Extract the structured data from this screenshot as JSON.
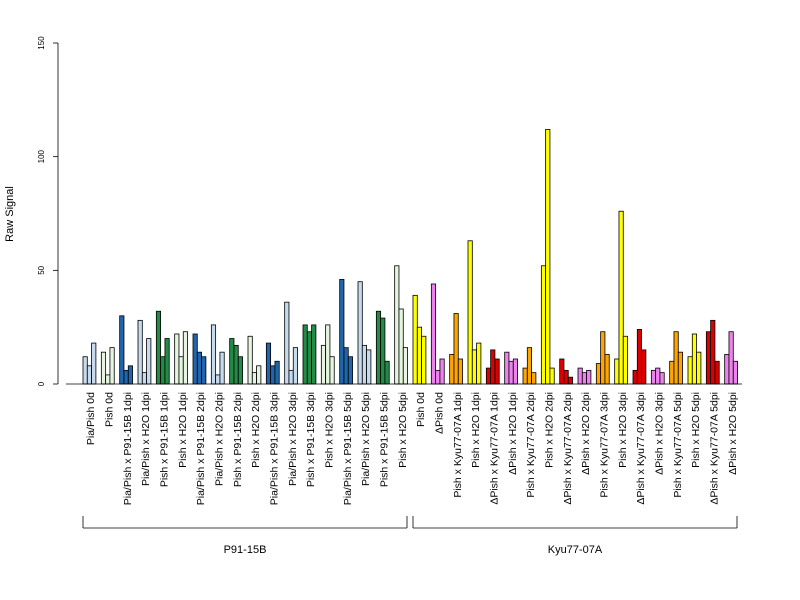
{
  "chart_data": {
    "type": "bar",
    "ylabel": "Raw Signal",
    "ylim": [
      0,
      150
    ],
    "yticks": [
      "0",
      "50",
      "100",
      "150"
    ],
    "categories": [
      "Pia/Pish 0d",
      "Pish 0d",
      "Pia/Pish x P91-15B 1dpi",
      "Pia/Pish x H2O 1dpi",
      "Pish x P91-15B 1dpi",
      "Pish x H2O 1dpi",
      "Pia/Pish x P91-15B 2dpi",
      "Pia/Pish x H2O 2dpi",
      "Pish x P91-15B 2dpi",
      "Pish x H2O 2dpi",
      "Pia/Pish x P91-15B 3dpi",
      "Pia/Pish x H2O 3dpi",
      "Pish x P91-15B 3dpi",
      "Pish x H2O 3dpi",
      "Pia/Pish x P91-15B 5dpi",
      "Pia/Pish x H2O 5dpi",
      "Pish x P91-15B 5dpi",
      "Pish x H2O 5dpi",
      "Pish 0d",
      "ΔPish 0d",
      "Pish x Kyu77-07A 1dpi",
      "Pish x H2O 1dpi",
      "ΔPish x Kyu77-07A 1dpi",
      "ΔPish x H2O 1dpi",
      "Pish x Kyu77-07A 2dpi",
      "Pish x H2O 2dpi",
      "ΔPish x Kyu77-07A 2dpi",
      "ΔPish x H2O 2dpi",
      "Pish x Kyu77-07A 3dpi",
      "Pish x H2O 3dpi",
      "ΔPish x Kyu77-07A 3dpi",
      "ΔPish x H2O 3dpi",
      "Pish x Kyu77-07A 5dpi",
      "Pish x H2O 5dpi",
      "ΔPish x Kyu77-07A 5dpi",
      "ΔPish x H2O 5dpi"
    ],
    "colors": [
      "#c6dbef",
      "#e5f5e0",
      "#2166ac",
      "#c6dbef",
      "#238b45",
      "#e5f5e0",
      "#2166ac",
      "#c6dbef",
      "#238b45",
      "#e5f5e0",
      "#2166ac",
      "#c6dbef",
      "#238b45",
      "#e5f5e0",
      "#2166ac",
      "#c6dbef",
      "#238b45",
      "#e5f5e0",
      "#ffff00",
      "#ee82ee",
      "#ffa500",
      "#ffff00",
      "#dd0000",
      "#ee82ee",
      "#ffa500",
      "#ffff00",
      "#dd0000",
      "#ee82ee",
      "#ffa500",
      "#ffff00",
      "#dd0000",
      "#ee82ee",
      "#ffa500",
      "#ffff00",
      "#dd0000",
      "#ee82ee"
    ],
    "values": [
      [
        12,
        8,
        18
      ],
      [
        14,
        4,
        16
      ],
      [
        30,
        6,
        8
      ],
      [
        28,
        5,
        20
      ],
      [
        32,
        12,
        20
      ],
      [
        22,
        12,
        23
      ],
      [
        22,
        14,
        12
      ],
      [
        26,
        4,
        14
      ],
      [
        20,
        17,
        12
      ],
      [
        21,
        5,
        8
      ],
      [
        18,
        8,
        10
      ],
      [
        36,
        6,
        16
      ],
      [
        26,
        23,
        26
      ],
      [
        17,
        26,
        12
      ],
      [
        46,
        16,
        12
      ],
      [
        45,
        17,
        15
      ],
      [
        32,
        29,
        10
      ],
      [
        52,
        33,
        16
      ],
      [
        39,
        25,
        21
      ],
      [
        44,
        6,
        11
      ],
      [
        13,
        31,
        11
      ],
      [
        63,
        15,
        18
      ],
      [
        7,
        15,
        11
      ],
      [
        14,
        10,
        11
      ],
      [
        7,
        16,
        5
      ],
      [
        52,
        112,
        7
      ],
      [
        11,
        6,
        3
      ],
      [
        7,
        5,
        6
      ],
      [
        9,
        23,
        13
      ],
      [
        11,
        76,
        21
      ],
      [
        6,
        24,
        15
      ],
      [
        6,
        7,
        5
      ],
      [
        10,
        23,
        14
      ],
      [
        12,
        22,
        14
      ],
      [
        23,
        28,
        10
      ],
      [
        13,
        23,
        10
      ]
    ],
    "groups": [
      {
        "label": "P91-15B",
        "start": 0,
        "end": 17
      },
      {
        "label": "Kyu77-07A",
        "start": 18,
        "end": 35
      }
    ]
  }
}
